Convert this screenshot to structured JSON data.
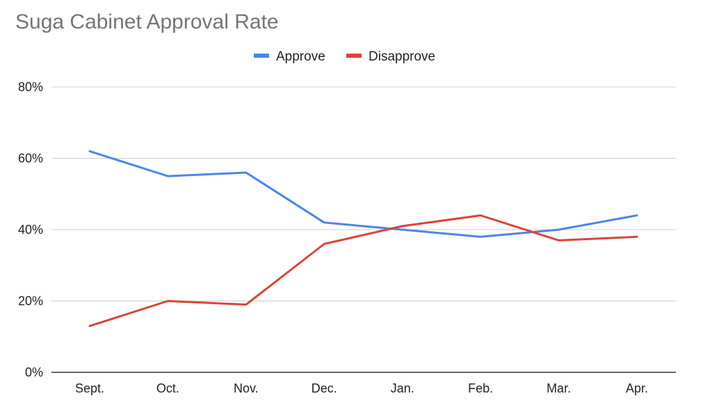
{
  "chart_data": {
    "type": "line",
    "title": "Suga Cabinet Approval Rate",
    "xlabel": "",
    "ylabel": "",
    "categories": [
      "Sept.",
      "Oct.",
      "Nov.",
      "Dec.",
      "Jan.",
      "Feb.",
      "Mar.",
      "Apr."
    ],
    "series": [
      {
        "name": "Approve",
        "color": "#4a86e8",
        "values": [
          62,
          55,
          56,
          42,
          40,
          38,
          40,
          44
        ]
      },
      {
        "name": "Disapprove",
        "color": "#db4437",
        "values": [
          13,
          20,
          19,
          36,
          41,
          44,
          37,
          38
        ]
      }
    ],
    "ylim": [
      0,
      80
    ],
    "yticks": [
      0,
      20,
      40,
      60,
      80
    ],
    "ytick_labels": [
      "0%",
      "20%",
      "40%",
      "60%",
      "80%"
    ],
    "grid": true,
    "legend_position": "top-center"
  }
}
